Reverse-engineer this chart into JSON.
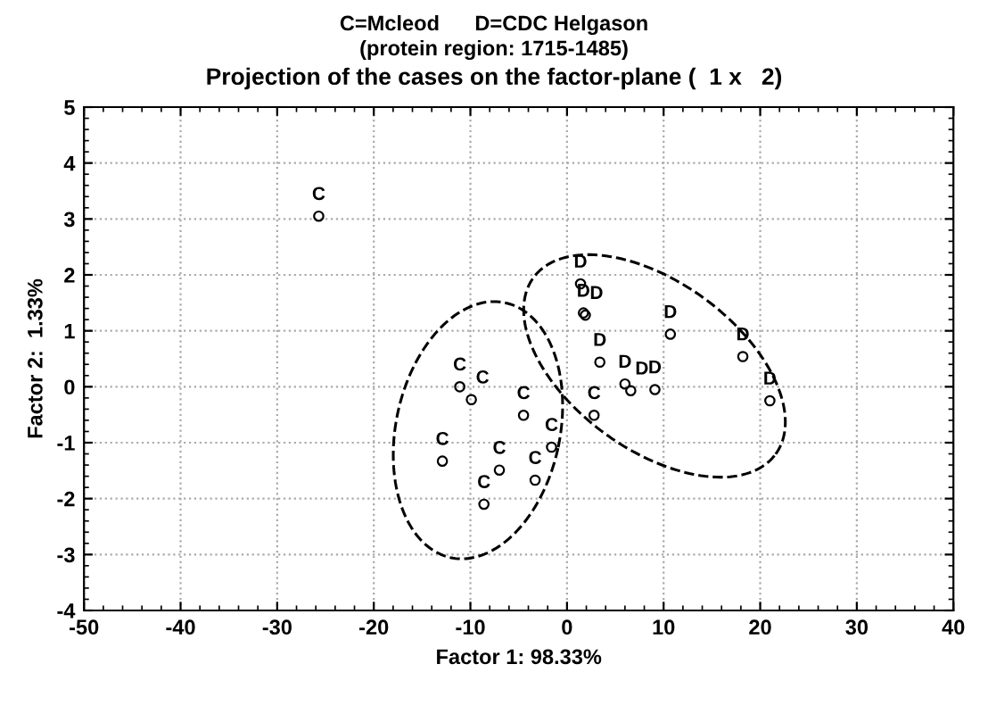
{
  "chart_data": {
    "type": "scatter",
    "title": "C=Mcleod      D=CDC Helgason",
    "subtitle": "(protein region: 1715-1485)",
    "annotations": [
      "Projection of the cases on the factor-plane (  1 x   2)"
    ],
    "xlabel": "Factor 1: 98.33%",
    "ylabel": "Factor 2:  1.33%",
    "series": [
      {
        "color": "#000000",
        "x": [
          -25.7,
          -11.1,
          -9.9,
          -12.9,
          -7.0,
          -8.6,
          -4.5,
          -1.6,
          -3.3,
          2.8,
          1.4,
          1.7,
          1.9,
          3.4,
          6.0,
          6.6,
          9.1,
          10.7,
          18.2,
          21.0
        ],
        "values": [
          3.05,
          0.0,
          -0.23,
          -1.33,
          -1.49,
          -2.1,
          -0.51,
          -1.08,
          -1.67,
          -0.51,
          1.84,
          1.32,
          1.28,
          0.44,
          0.05,
          -0.07,
          -0.05,
          0.94,
          0.54,
          -0.25
        ],
        "value_labels": [
          "C",
          "C",
          "C",
          "C",
          "C",
          "C",
          "C",
          "C",
          "C",
          "C",
          "D",
          "D",
          "D",
          "D",
          "D",
          "D",
          "D",
          "D",
          "D",
          "D"
        ]
      }
    ],
    "xlim": [
      -50,
      40
    ],
    "xticks": [
      -50,
      -40,
      -30,
      -20,
      -10,
      0,
      10,
      20,
      30,
      40
    ],
    "ylim": [
      -4,
      5
    ],
    "yticks": [
      -4,
      -3,
      -2,
      -1,
      0,
      1,
      2,
      3,
      4,
      5
    ],
    "grid": true,
    "marker": "circle"
  }
}
